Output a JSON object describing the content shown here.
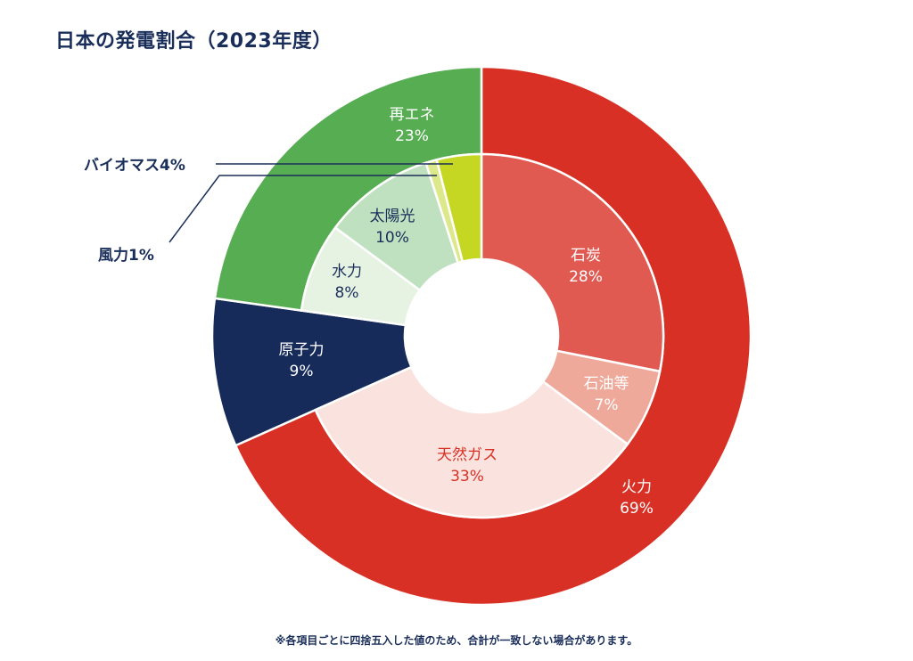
{
  "title": "日本の発電割合（2023年度）",
  "note": "※各項目ごとに四捨五入した値のため、合計が一致しない場合があります。",
  "chart_data": {
    "type": "pie",
    "subtype": "nested-donut",
    "title": "日本の発電割合（2023年度）",
    "outer": [
      {
        "name": "火力",
        "value": 69,
        "label": "69%",
        "color": "#d93025",
        "text_color": "#ffffff"
      },
      {
        "name": "原子力",
        "value": 9,
        "label": "9%",
        "color": "#162b5a",
        "text_color": "#ffffff",
        "full_depth": true
      },
      {
        "name": "再エネ",
        "value": 23,
        "label": "23%",
        "color": "#56ad52",
        "text_color": "#ffffff"
      }
    ],
    "inner": [
      {
        "name": "石炭",
        "value": 28,
        "label": "28%",
        "parent": "火力",
        "color": "#e05a52",
        "text_color": "#ffffff"
      },
      {
        "name": "石油等",
        "value": 7,
        "label": "7%",
        "parent": "火力",
        "color": "#eea99a",
        "text_color": "#ffffff"
      },
      {
        "name": "天然ガス",
        "value": 33,
        "label": "33%",
        "parent": "火力",
        "color": "#fae3de",
        "text_color": "#d93025"
      },
      {
        "name": "水力",
        "value": 8,
        "label": "8%",
        "parent": "再エネ",
        "color": "#e6f3e3",
        "text_color": "#1a2e5a"
      },
      {
        "name": "太陽光",
        "value": 10,
        "label": "10%",
        "parent": "再エネ",
        "color": "#c0e1bf",
        "text_color": "#1a2e5a"
      },
      {
        "name": "風力",
        "value": 1,
        "label": "1%",
        "parent": "再エネ",
        "color": "#dde88a",
        "text_color": "#1a2e5a",
        "external_label": "風力1%"
      },
      {
        "name": "バイオマス",
        "value": 4,
        "label": "4%",
        "parent": "再エネ",
        "color": "#c5d623",
        "text_color": "#1a2e5a",
        "external_label": "バイオマス4%"
      }
    ],
    "legend": "none"
  }
}
